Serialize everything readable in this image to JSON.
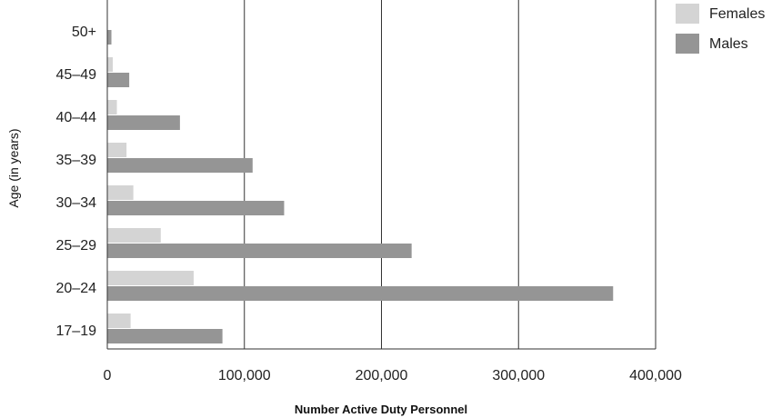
{
  "chart_data": {
    "type": "bar",
    "orientation": "horizontal",
    "categories": [
      "50+",
      "45–49",
      "40–44",
      "35–39",
      "30–34",
      "25–29",
      "20–24",
      "17–19"
    ],
    "series": [
      {
        "name": "Females",
        "color": "#d4d4d4",
        "values": [
          0,
          4000,
          7000,
          14000,
          19000,
          39000,
          63000,
          17000
        ]
      },
      {
        "name": "Males",
        "color": "#959595",
        "values": [
          3000,
          16000,
          53000,
          106000,
          129000,
          222000,
          369000,
          84000
        ]
      }
    ],
    "xlabel": "Number Active Duty Personnel",
    "ylabel": "Age (in years)",
    "xlim": [
      0,
      400000
    ],
    "xticks": [
      "0",
      "100,000",
      "200,000",
      "300,000",
      "400,000"
    ],
    "xtick_values": [
      0,
      100000,
      200000,
      300000,
      400000
    ],
    "grid": "vertical",
    "legend": "top-right"
  }
}
